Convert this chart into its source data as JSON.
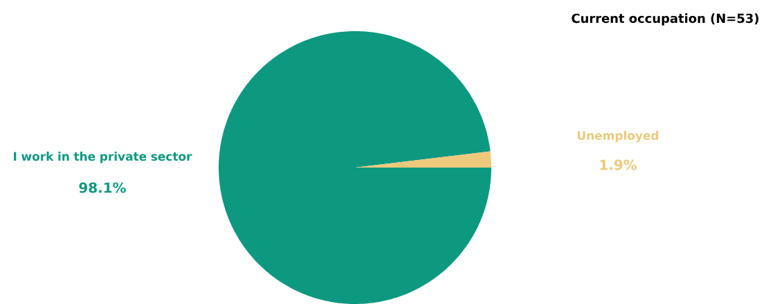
{
  "chart_data": {
    "type": "pie",
    "title": "Current occupation  (N=53)",
    "categories": [
      "I work in the private sector",
      "Unemployed"
    ],
    "values": [
      98.1,
      1.9
    ],
    "colors": [
      "#0d9880",
      "#edc97c"
    ],
    "value_labels": [
      "98.1%",
      "1.9%"
    ]
  }
}
